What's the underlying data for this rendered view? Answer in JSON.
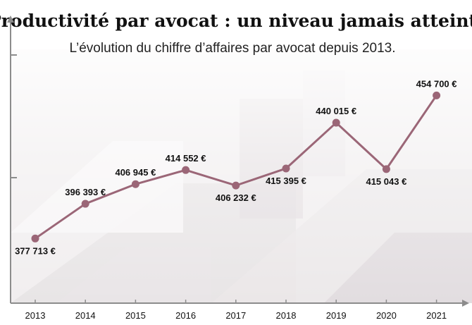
{
  "chart_data": {
    "type": "line",
    "title": "Productivité par avocat : un niveau jamais atteint",
    "subtitle": "L’évolution du chiffre d’affaires par avocat depuis 2013.",
    "categories": [
      "2013",
      "2014",
      "2015",
      "2016",
      "2017",
      "2018",
      "2019",
      "2020",
      "2021"
    ],
    "series": [
      {
        "values": [
          377713,
          396393,
          406945,
          414552,
          406232,
          415395,
          440015,
          415043,
          454700
        ],
        "labels": [
          "377 713 €",
          "396 393 €",
          "406 945 €",
          "414 552 €",
          "406 232 €",
          "415 395 €",
          "440 015 €",
          "415 043 €",
          "454 700 €"
        ],
        "label_positions": [
          "below",
          "above",
          "above",
          "above",
          "below",
          "below",
          "above",
          "below",
          "above"
        ]
      }
    ],
    "line_color": "#9b6677",
    "axis_color": "#8c8c8c",
    "ylim": [
      360000,
      470000
    ],
    "grid": false,
    "legend": "none"
  }
}
